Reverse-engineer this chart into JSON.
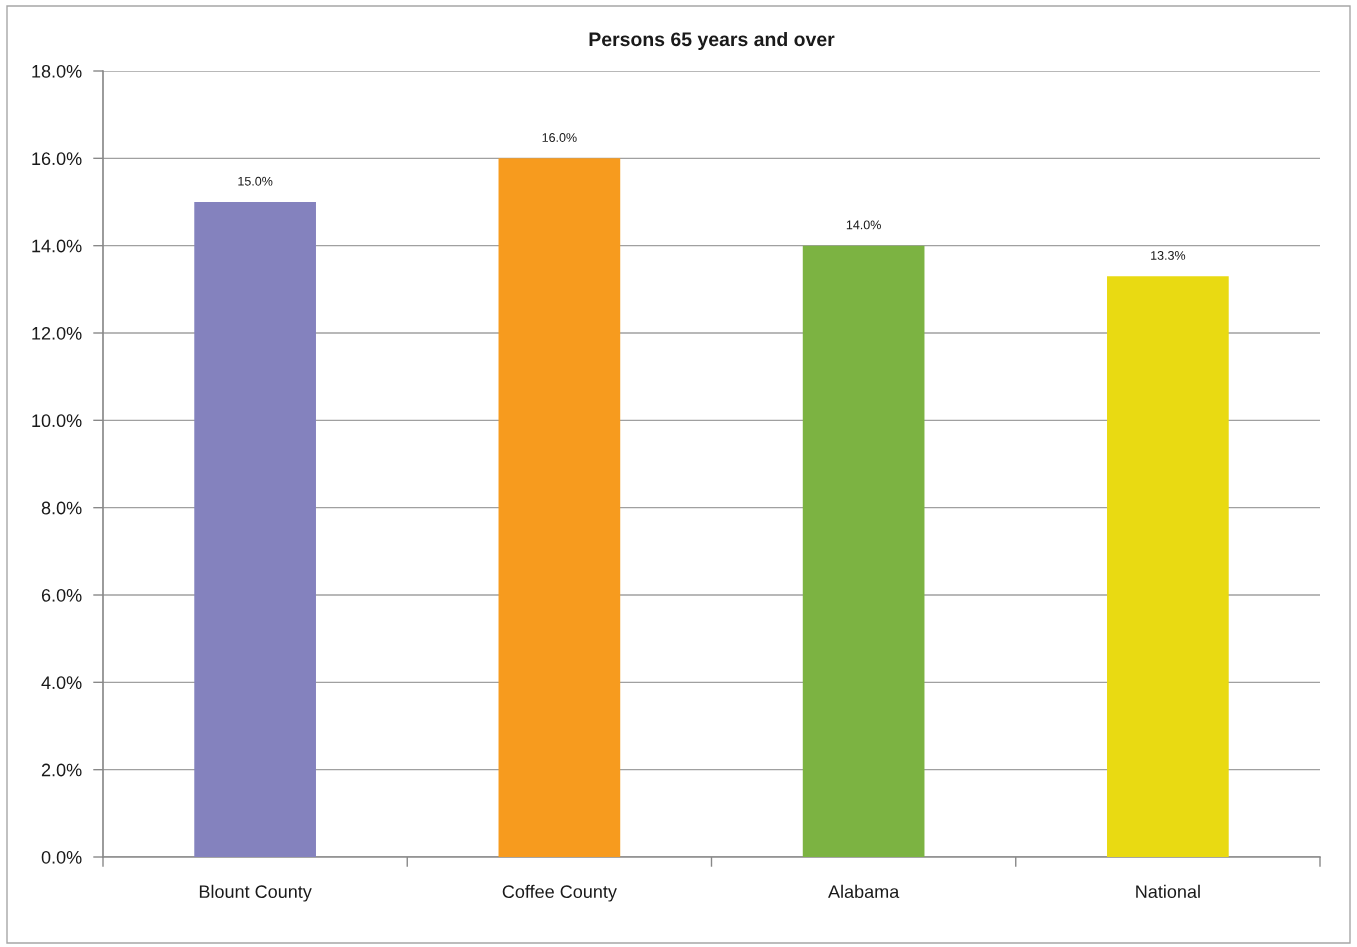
{
  "chart_data": {
    "type": "bar",
    "title": "Persons 65 years and over",
    "categories": [
      "Blount County",
      "Coffee County",
      "Alabama",
      "National"
    ],
    "values": [
      15.0,
      16.0,
      14.0,
      13.3
    ],
    "colors": [
      "#8482be",
      "#f79b1e",
      "#7cb342",
      "#e9da12"
    ],
    "value_labels": [
      "15.0%",
      "16.0%",
      "14.0%",
      "13.3%"
    ],
    "ylim": [
      0,
      18
    ],
    "yticks": [
      {
        "value": 0,
        "label": "0.0%"
      },
      {
        "value": 2,
        "label": "2.0%"
      },
      {
        "value": 4,
        "label": "4.0%"
      },
      {
        "value": 6,
        "label": "6.0%"
      },
      {
        "value": 8,
        "label": "8.0%"
      },
      {
        "value": 10,
        "label": "10.0%"
      },
      {
        "value": 12,
        "label": "12.0%"
      },
      {
        "value": 14,
        "label": "14.0%"
      },
      {
        "value": 16,
        "label": "16.0%"
      },
      {
        "value": 18,
        "label": "18.0%"
      }
    ],
    "grid": "y",
    "legend": false
  }
}
